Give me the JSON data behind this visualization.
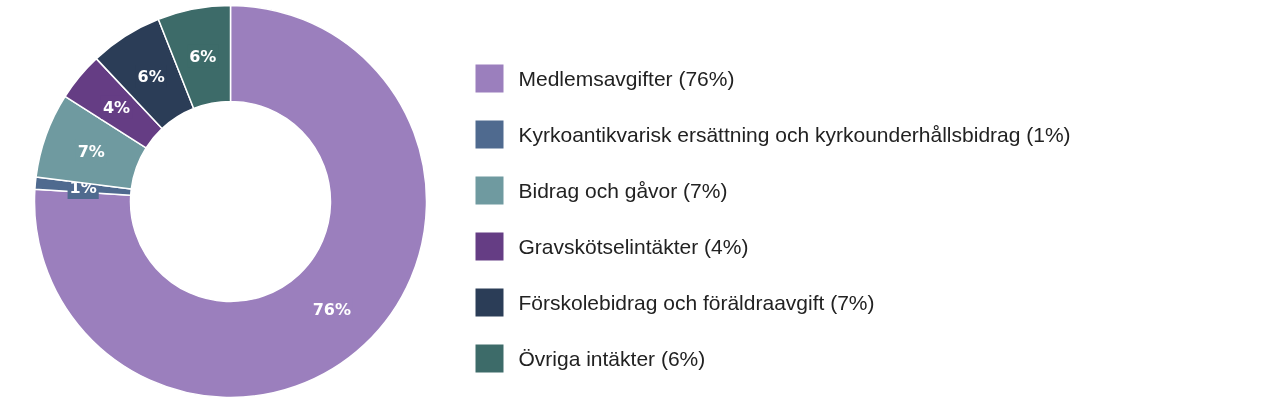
{
  "chart_data": {
    "type": "donut",
    "categories": [
      "Medlemsavgifter (76%)",
      "Kyrkoantikvarisk ersättning och kyrkounderhållsbidrag (1%)",
      "Bidrag och gåvor (7%)",
      "Gravskötselintäkter (4%)",
      "Förskolebidrag och föräldraavgift (7%)",
      "Övriga intäkter (6%)"
    ],
    "values": [
      76,
      1,
      7,
      4,
      6,
      6
    ],
    "value_labels": [
      "76%",
      "1%",
      "7%",
      "4%",
      "6%",
      "6%"
    ],
    "colors": [
      "#9b7fbd",
      "#4f6a8f",
      "#6f9aa0",
      "#653d84",
      "#2b3d57",
      "#3d6b69"
    ],
    "legend": "right"
  }
}
